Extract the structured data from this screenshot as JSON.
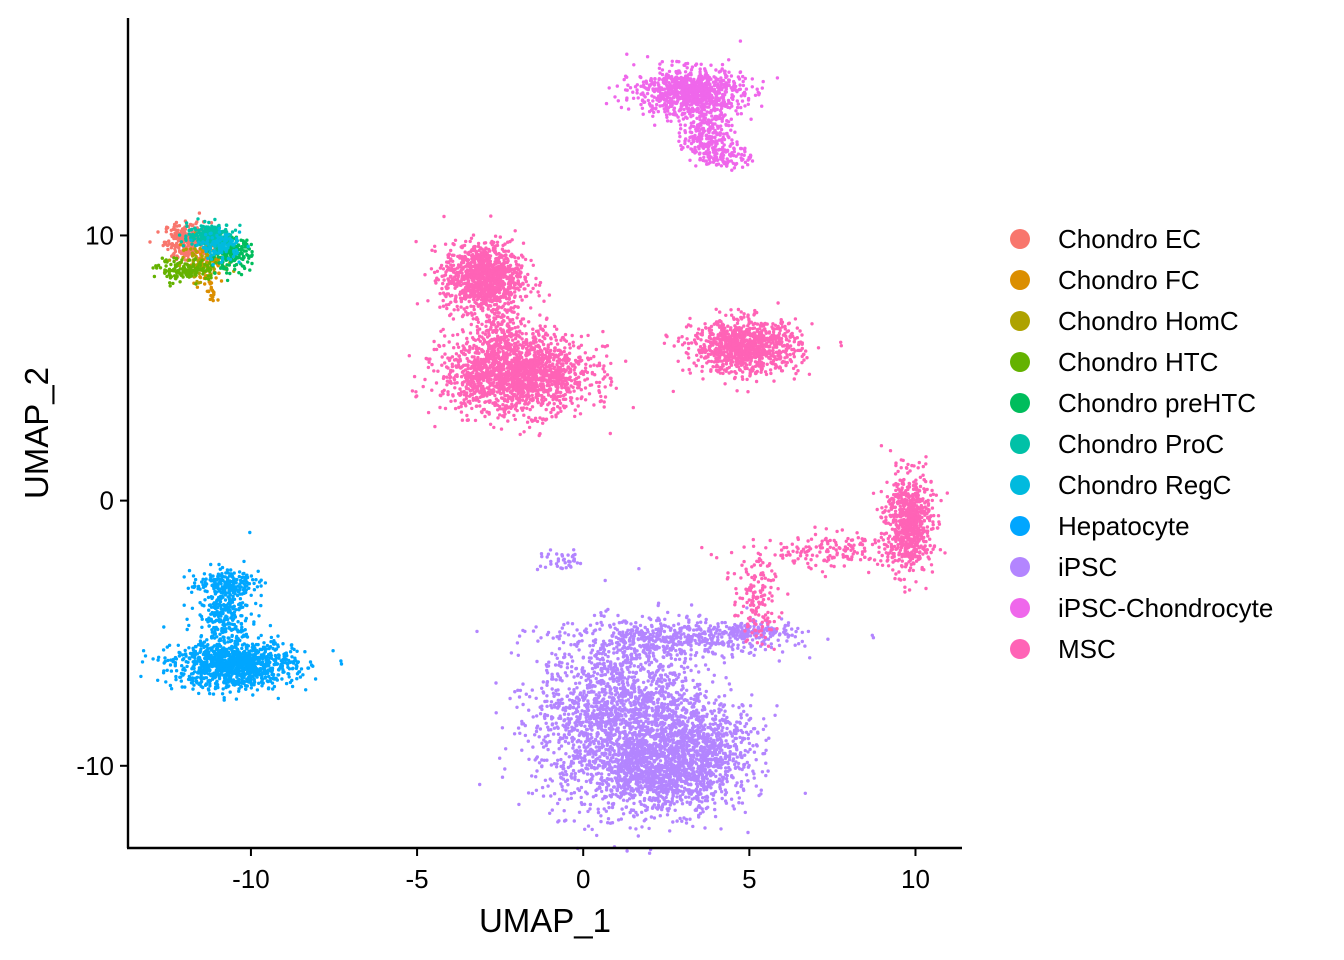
{
  "chart_data": {
    "type": "scatter",
    "title": "",
    "xlabel": "UMAP_1",
    "ylabel": "UMAP_2",
    "xlim": [
      -13.7,
      11.4
    ],
    "ylim": [
      -13.1,
      18.2
    ],
    "x_ticks": [
      -10,
      -5,
      0,
      5,
      10
    ],
    "x_tick_labels": [
      "-10",
      "-5",
      "0",
      "5",
      "10"
    ],
    "y_ticks": [
      -10,
      0,
      10
    ],
    "y_tick_labels": [
      "-10",
      "0",
      "10"
    ],
    "grid": false,
    "legend_position": "right",
    "series": [
      {
        "name": "Chondro EC",
        "color": "#F8766D",
        "clusters": [
          {
            "x": -11.9,
            "y": 9.8,
            "sx": 0.35,
            "sy": 0.35,
            "n": 260
          }
        ]
      },
      {
        "name": "Chondro FC",
        "color": "#DB8E00",
        "clusters": [
          {
            "x": -11.3,
            "y": 9.0,
            "sx": 0.3,
            "sy": 0.4,
            "n": 80
          },
          {
            "x": -11.2,
            "y": 7.9,
            "sx": 0.08,
            "sy": 0.3,
            "n": 25
          }
        ]
      },
      {
        "name": "Chondro HomC",
        "color": "#AEA200",
        "clusters": [
          {
            "x": -11.6,
            "y": 9.0,
            "sx": 0.4,
            "sy": 0.3,
            "n": 80
          }
        ]
      },
      {
        "name": "Chondro HTC",
        "color": "#64B200",
        "clusters": [
          {
            "x": -11.9,
            "y": 8.7,
            "sx": 0.45,
            "sy": 0.2,
            "n": 160
          }
        ]
      },
      {
        "name": "Chondro preHTC",
        "color": "#00BD5C",
        "clusters": [
          {
            "x": -10.6,
            "y": 9.3,
            "sx": 0.3,
            "sy": 0.3,
            "n": 200
          }
        ]
      },
      {
        "name": "Chondro ProC",
        "color": "#00C1A7",
        "clusters": [
          {
            "x": -11.2,
            "y": 10.0,
            "sx": 0.35,
            "sy": 0.22,
            "n": 240
          }
        ]
      },
      {
        "name": "Chondro RegC",
        "color": "#00BADE",
        "clusters": [
          {
            "x": -10.9,
            "y": 9.6,
            "sx": 0.3,
            "sy": 0.25,
            "n": 130
          }
        ]
      },
      {
        "name": "Hepatocyte",
        "color": "#00A6FF",
        "clusters": [
          {
            "x": -10.5,
            "y": -6.2,
            "sx": 0.9,
            "sy": 0.45,
            "n": 1100
          },
          {
            "x": -10.8,
            "y": -4.2,
            "sx": 0.4,
            "sy": 0.7,
            "n": 300
          },
          {
            "x": -10.8,
            "y": -3.1,
            "sx": 0.5,
            "sy": 0.2,
            "n": 150
          }
        ]
      },
      {
        "name": "iPSC",
        "color": "#B385FF",
        "clusters": [
          {
            "x": 1.2,
            "y": -8.3,
            "sx": 1.3,
            "sy": 1.6,
            "n": 2200
          },
          {
            "x": 2.4,
            "y": -10.4,
            "sx": 1.0,
            "sy": 0.7,
            "n": 800
          },
          {
            "x": 3.6,
            "y": -9.3,
            "sx": 0.9,
            "sy": 0.9,
            "n": 600
          },
          {
            "x": 3.0,
            "y": -5.2,
            "sx": 1.6,
            "sy": 0.35,
            "n": 500
          },
          {
            "x": 5.3,
            "y": -4.9,
            "sx": 0.6,
            "sy": 0.12,
            "n": 100
          },
          {
            "x": -0.6,
            "y": -2.3,
            "sx": 0.35,
            "sy": 0.18,
            "n": 40
          }
        ]
      },
      {
        "name": "iPSC-Chondrocyte",
        "color": "#EF67EB",
        "clusters": [
          {
            "x": 3.2,
            "y": 15.4,
            "sx": 0.8,
            "sy": 0.45,
            "n": 900
          },
          {
            "x": 3.7,
            "y": 13.9,
            "sx": 0.35,
            "sy": 0.5,
            "n": 220
          },
          {
            "x": 4.3,
            "y": 13.0,
            "sx": 0.4,
            "sy": 0.25,
            "n": 110
          }
        ]
      },
      {
        "name": "MSC",
        "color": "#FF63B6",
        "clusters": [
          {
            "x": -3.0,
            "y": 8.4,
            "sx": 0.6,
            "sy": 0.65,
            "n": 1100
          },
          {
            "x": -2.0,
            "y": 4.8,
            "sx": 1.1,
            "sy": 0.75,
            "n": 1800
          },
          {
            "x": 4.9,
            "y": 5.8,
            "sx": 0.8,
            "sy": 0.5,
            "n": 1000
          },
          {
            "x": 9.8,
            "y": -0.8,
            "sx": 0.35,
            "sy": 0.9,
            "n": 700
          },
          {
            "x": 7.5,
            "y": -1.9,
            "sx": 1.3,
            "sy": 0.35,
            "n": 180
          },
          {
            "x": 5.2,
            "y": -3.8,
            "sx": 0.35,
            "sy": 0.8,
            "n": 150
          },
          {
            "x": -2.5,
            "y": 6.6,
            "sx": 0.3,
            "sy": 0.5,
            "n": 120
          }
        ]
      }
    ]
  }
}
